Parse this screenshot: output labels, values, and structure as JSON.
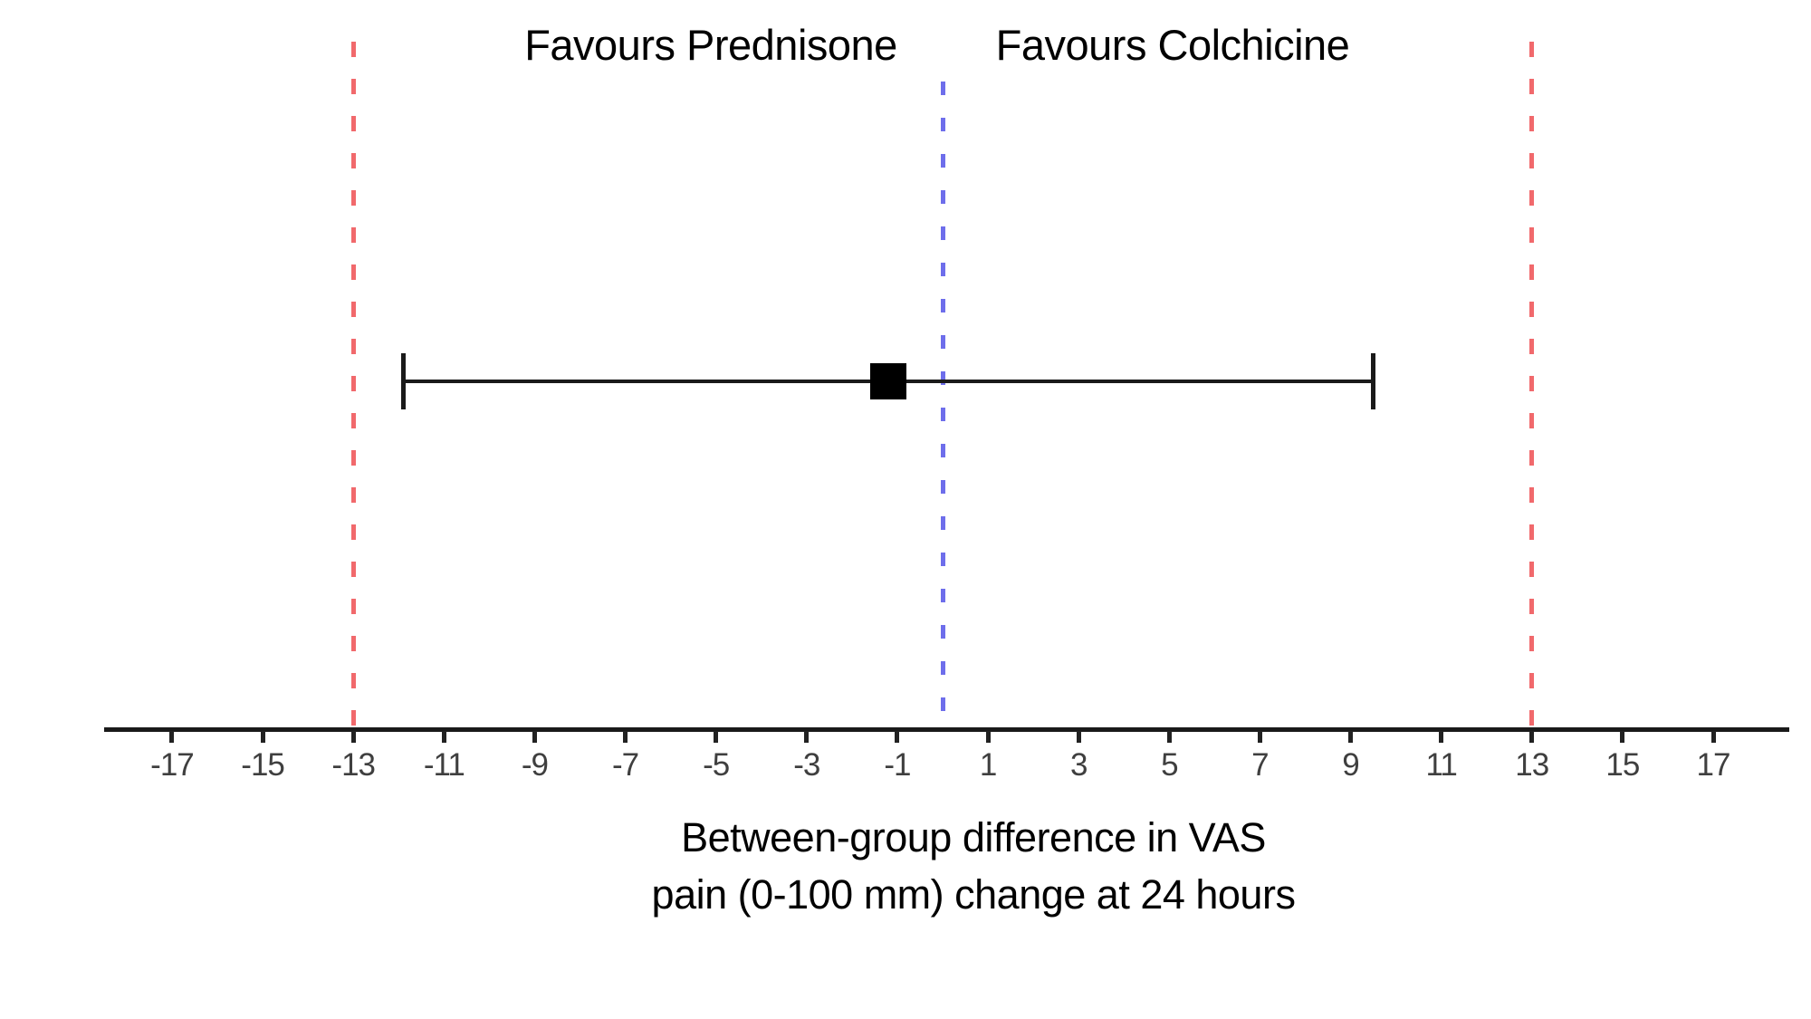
{
  "chart_data": {
    "type": "forest",
    "title": "",
    "region_labels": {
      "left": "Favours Prednisone",
      "right": "Favours Colchicine"
    },
    "xlabel_lines": [
      "Between-group difference in VAS",
      "pain (0-100 mm) change at 24 hours"
    ],
    "x_ticks": [
      -17,
      -15,
      -13,
      -11,
      -9,
      -7,
      -5,
      -3,
      -1,
      1,
      3,
      5,
      7,
      9,
      11,
      13,
      15,
      17
    ],
    "xlim": [
      -18.5,
      18.7
    ],
    "series": [
      {
        "name": "Between-group difference",
        "point_estimate": -1.2,
        "ci_lower": -11.9,
        "ci_upper": 9.5
      }
    ],
    "null_line_value": 0,
    "noninferiority_margins": [
      -13,
      13
    ],
    "grid": false,
    "legend": false,
    "colors": {
      "noninferiority_margin_line": "#f1696c",
      "null_line": "#6e6eeb",
      "estimate_marker": "#000000",
      "ci_line": "#1a1a1a",
      "axis_line": "#1a1a1a",
      "tick_label": "#3f3f3f",
      "text": "#000000"
    }
  }
}
